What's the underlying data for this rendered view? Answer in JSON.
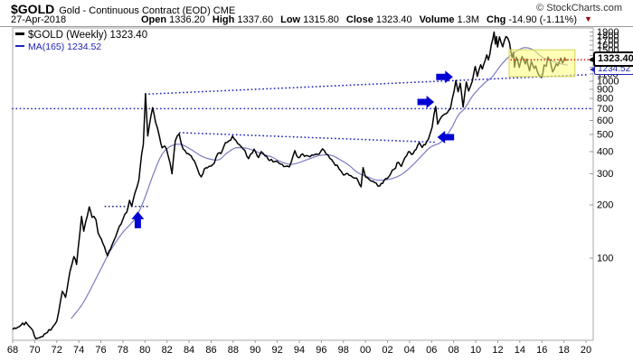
{
  "header": {
    "symbol": "$GOLD",
    "title": "Gold - Continuous Contract (EOD) CME",
    "source": "© StockCharts.com",
    "date": "27-Apr-2018",
    "quote": {
      "open_label": "Open",
      "open": "1336.20",
      "high_label": "High",
      "high": "1337.60",
      "low_label": "Low",
      "low": "1315.80",
      "close_label": "Close",
      "close": "1323.40",
      "volume_label": "Volume",
      "volume": "1.3M",
      "chg_label": "Chg",
      "chg": "-14.90 (-1.11%)",
      "chg_triangle": "▼"
    }
  },
  "legend": {
    "price": "$GOLD (Weekly) 1323.40",
    "ma": "MA(165) 1234.52"
  },
  "price_labels": {
    "close": "1323.40",
    "ma": "1234.52"
  },
  "colors": {
    "price_line": "#000000",
    "ma_line": "#7b7bc4",
    "trendline_blue": "#2929cc",
    "trendline_dark": "#26267f",
    "close_dotted": "#cc1111",
    "arrow": "#0000d6",
    "highlight_fill": "rgba(255,255,120,0.55)",
    "highlight_border": "#d2d258",
    "axis_text": "#000000",
    "tick": "#999999",
    "border": "#aaaaaa"
  },
  "chart_data": {
    "type": "line",
    "title": "$GOLD Gold - Continuous Contract (EOD) weekly, log scale",
    "x_range_years": [
      1968,
      2020.6
    ],
    "y_scale": "log",
    "grid": false,
    "x_ticks": [
      "68",
      "70",
      "72",
      "74",
      "76",
      "78",
      "80",
      "82",
      "84",
      "86",
      "88",
      "90",
      "92",
      "94",
      "96",
      "98",
      "00",
      "02",
      "04",
      "06",
      "08",
      "10",
      "12",
      "14",
      "16",
      "18",
      "20"
    ],
    "y_ticks": [
      1900,
      1800,
      1700,
      1600,
      1500,
      1400,
      1300,
      1200,
      1100,
      1000,
      900,
      800,
      700,
      600,
      500,
      400,
      300,
      200,
      100
    ],
    "series": [
      {
        "name": "$GOLD (Weekly)",
        "last_value": 1323.4,
        "points": [
          [
            1968.0,
            39.5
          ],
          [
            1968.6,
            41
          ],
          [
            1969.2,
            43.5
          ],
          [
            1969.7,
            40
          ],
          [
            1970.1,
            35
          ],
          [
            1970.6,
            36
          ],
          [
            1971.0,
            37.5
          ],
          [
            1971.6,
            40.5
          ],
          [
            1972.0,
            44
          ],
          [
            1972.5,
            65
          ],
          [
            1972.8,
            60
          ],
          [
            1973.2,
            84
          ],
          [
            1973.55,
            102
          ],
          [
            1973.8,
            92
          ],
          [
            1974.25,
            172
          ],
          [
            1974.45,
            142
          ],
          [
            1974.95,
            195
          ],
          [
            1975.2,
            170
          ],
          [
            1975.55,
            165
          ],
          [
            1975.75,
            139
          ],
          [
            1976.05,
            128
          ],
          [
            1976.6,
            103
          ],
          [
            1977.0,
            118
          ],
          [
            1977.5,
            141
          ],
          [
            1978.0,
            166
          ],
          [
            1978.35,
            182
          ],
          [
            1978.6,
            212
          ],
          [
            1978.8,
            196
          ],
          [
            1979.1,
            234
          ],
          [
            1979.45,
            277
          ],
          [
            1979.7,
            385
          ],
          [
            1979.85,
            440
          ],
          [
            1980.05,
            850
          ],
          [
            1980.25,
            490
          ],
          [
            1980.55,
            640
          ],
          [
            1980.7,
            710
          ],
          [
            1980.95,
            590
          ],
          [
            1981.3,
            490
          ],
          [
            1981.55,
            420
          ],
          [
            1981.8,
            430
          ],
          [
            1982.1,
            380
          ],
          [
            1982.45,
            300
          ],
          [
            1982.75,
            460
          ],
          [
            1983.1,
            505
          ],
          [
            1983.45,
            415
          ],
          [
            1983.8,
            390
          ],
          [
            1984.2,
            378
          ],
          [
            1984.6,
            340
          ],
          [
            1985.1,
            288
          ],
          [
            1985.4,
            320
          ],
          [
            1985.8,
            330
          ],
          [
            1986.3,
            345
          ],
          [
            1986.6,
            390
          ],
          [
            1986.9,
            390
          ],
          [
            1987.3,
            450
          ],
          [
            1987.6,
            460
          ],
          [
            1987.95,
            490
          ],
          [
            1988.4,
            445
          ],
          [
            1988.9,
            415
          ],
          [
            1989.4,
            365
          ],
          [
            1989.9,
            413
          ],
          [
            1990.3,
            370
          ],
          [
            1990.55,
            400
          ],
          [
            1990.9,
            378
          ],
          [
            1991.3,
            356
          ],
          [
            1991.8,
            352
          ],
          [
            1992.3,
            340
          ],
          [
            1992.75,
            330
          ],
          [
            1993.1,
            328
          ],
          [
            1993.6,
            405
          ],
          [
            1993.9,
            370
          ],
          [
            1994.3,
            388
          ],
          [
            1994.8,
            378
          ],
          [
            1995.3,
            382
          ],
          [
            1995.8,
            387
          ],
          [
            1996.1,
            415
          ],
          [
            1996.6,
            383
          ],
          [
            1997.1,
            348
          ],
          [
            1997.6,
            320
          ],
          [
            1998.0,
            295
          ],
          [
            1998.4,
            300
          ],
          [
            1998.8,
            288
          ],
          [
            1999.2,
            283
          ],
          [
            1999.6,
            253
          ],
          [
            1999.78,
            325
          ],
          [
            2000.0,
            288
          ],
          [
            2000.4,
            276
          ],
          [
            2000.8,
            268
          ],
          [
            2001.3,
            256
          ],
          [
            2001.7,
            276
          ],
          [
            2002.1,
            288
          ],
          [
            2002.6,
            318
          ],
          [
            2003.0,
            348
          ],
          [
            2003.25,
            330
          ],
          [
            2003.9,
            400
          ],
          [
            2004.3,
            388
          ],
          [
            2004.9,
            450
          ],
          [
            2005.15,
            422
          ],
          [
            2005.7,
            468
          ],
          [
            2006.05,
            550
          ],
          [
            2006.37,
            720
          ],
          [
            2006.55,
            572
          ],
          [
            2006.9,
            630
          ],
          [
            2007.3,
            655
          ],
          [
            2007.7,
            695
          ],
          [
            2008.2,
            1010
          ],
          [
            2008.4,
            872
          ],
          [
            2008.6,
            975
          ],
          [
            2008.85,
            715
          ],
          [
            2009.15,
            990
          ],
          [
            2009.35,
            880
          ],
          [
            2009.7,
            1005
          ],
          [
            2009.95,
            1212
          ],
          [
            2010.15,
            1065
          ],
          [
            2010.45,
            1240
          ],
          [
            2010.6,
            1170
          ],
          [
            2011.0,
            1410
          ],
          [
            2011.15,
            1320
          ],
          [
            2011.67,
            1898
          ],
          [
            2011.78,
            1620
          ],
          [
            2011.88,
            1788
          ],
          [
            2011.98,
            1560
          ],
          [
            2012.15,
            1780
          ],
          [
            2012.45,
            1565
          ],
          [
            2012.75,
            1790
          ],
          [
            2013.05,
            1660
          ],
          [
            2013.3,
            1360
          ],
          [
            2013.42,
            1460
          ],
          [
            2013.52,
            1200
          ],
          [
            2013.68,
            1368
          ],
          [
            2013.95,
            1195
          ],
          [
            2014.2,
            1380
          ],
          [
            2014.5,
            1250
          ],
          [
            2014.6,
            1335
          ],
          [
            2014.88,
            1145
          ],
          [
            2015.05,
            1295
          ],
          [
            2015.3,
            1180
          ],
          [
            2015.45,
            1220
          ],
          [
            2015.7,
            1090
          ],
          [
            2015.97,
            1050
          ],
          [
            2016.2,
            1235
          ],
          [
            2016.4,
            1215
          ],
          [
            2016.55,
            1370
          ],
          [
            2016.75,
            1305
          ],
          [
            2016.97,
            1128
          ],
          [
            2017.3,
            1255
          ],
          [
            2017.45,
            1225
          ],
          [
            2017.7,
            1352
          ],
          [
            2017.88,
            1268
          ],
          [
            2018.0,
            1305
          ],
          [
            2018.07,
            1360
          ],
          [
            2018.2,
            1310
          ],
          [
            2018.32,
            1323.4
          ]
        ]
      },
      {
        "name": "MA(165)",
        "last_value": 1234.52,
        "points": [
          [
            1973.3,
            45.5
          ],
          [
            1974.4,
            56
          ],
          [
            1975.8,
            82
          ],
          [
            1976.9,
            111
          ],
          [
            1978.0,
            140
          ],
          [
            1979.1,
            167
          ],
          [
            1979.9,
            212
          ],
          [
            1980.7,
            291
          ],
          [
            1981.5,
            381
          ],
          [
            1982.3,
            428
          ],
          [
            1983.2,
            440
          ],
          [
            1984.1,
            414
          ],
          [
            1985.0,
            381
          ],
          [
            1985.8,
            364
          ],
          [
            1986.7,
            360
          ],
          [
            1987.4,
            391
          ],
          [
            1988.2,
            419
          ],
          [
            1989.1,
            419
          ],
          [
            1989.9,
            405
          ],
          [
            1990.7,
            386
          ],
          [
            1991.5,
            373
          ],
          [
            1992.3,
            351
          ],
          [
            1993.2,
            339
          ],
          [
            1994.0,
            347
          ],
          [
            1994.9,
            364
          ],
          [
            1995.9,
            381
          ],
          [
            1996.9,
            381
          ],
          [
            1997.7,
            360
          ],
          [
            1998.5,
            335
          ],
          [
            1999.3,
            304
          ],
          [
            2000.1,
            290
          ],
          [
            2000.9,
            277
          ],
          [
            2001.8,
            277
          ],
          [
            2002.6,
            284
          ],
          [
            2003.4,
            301
          ],
          [
            2004.2,
            332
          ],
          [
            2005.0,
            373
          ],
          [
            2005.9,
            424
          ],
          [
            2006.9,
            455
          ],
          [
            2007.8,
            543
          ],
          [
            2008.4,
            641
          ],
          [
            2009.0,
            703
          ],
          [
            2009.8,
            839
          ],
          [
            2010.8,
            977
          ],
          [
            2011.5,
            1061
          ],
          [
            2012.3,
            1236
          ],
          [
            2013.1,
            1389
          ],
          [
            2014.1,
            1526
          ],
          [
            2014.7,
            1544
          ],
          [
            2015.3,
            1491
          ],
          [
            2016.0,
            1373
          ],
          [
            2016.6,
            1326
          ],
          [
            2017.3,
            1277
          ],
          [
            2017.9,
            1247
          ],
          [
            2018.32,
            1234.52
          ]
        ]
      }
    ],
    "annotations": {
      "trendlines": [
        {
          "label": "rising-line-from-1980-peak",
          "x1": 1980.05,
          "p1": 845,
          "x2": 2020.3,
          "p2": 1090,
          "style": "dotted",
          "color_key": "trendline_blue"
        },
        {
          "label": "horizontal-line-700",
          "x1": 1968.0,
          "p1": 700,
          "x2": 2020.45,
          "p2": 700,
          "style": "dotted",
          "color_key": "trendline_blue"
        },
        {
          "label": "falling-line-from-1983-peak",
          "x1": 1983.15,
          "p1": 512,
          "x2": 2006.45,
          "p2": 452,
          "style": "dotted",
          "color_key": "trendline_blue"
        },
        {
          "label": "1974-high-resistance",
          "x1": 1976.4,
          "p1": 196,
          "x2": 1980.2,
          "p2": 196,
          "style": "dotted",
          "color_key": "trendline_dark"
        }
      ],
      "close_line": {
        "year_from": 2013.2,
        "year_to": 2020.6,
        "price": 1323.4
      },
      "highlight_box": {
        "year_from": 2013.03,
        "year_to": 2019.0,
        "price_top": 1505,
        "price_bottom": 1062
      },
      "arrows": [
        {
          "dir": "up",
          "year": 1979.35,
          "price": 164
        },
        {
          "dir": "right",
          "year": 2005.45,
          "price": 763
        },
        {
          "dir": "right",
          "year": 2007.15,
          "price": 1058
        },
        {
          "dir": "left",
          "year": 2007.3,
          "price": 483
        }
      ]
    }
  }
}
